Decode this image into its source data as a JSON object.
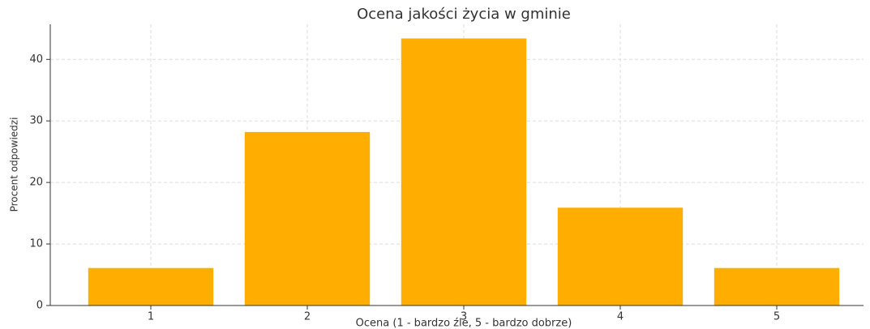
{
  "chart_data": {
    "type": "bar",
    "title": "Ocena jakości życia w gminie",
    "xlabel": "Ocena (1 - bardzo źle, 5 - bardzo dobrze)",
    "ylabel": "Procent odpowiedzi",
    "categories": [
      "1",
      "2",
      "3",
      "4",
      "5"
    ],
    "values": [
      6.1,
      28.2,
      43.4,
      15.9,
      6.1
    ],
    "color": "#ffae00",
    "ylim": [
      0,
      45.7
    ],
    "yticks": [
      0,
      10,
      20,
      30,
      40
    ],
    "grid": true
  }
}
